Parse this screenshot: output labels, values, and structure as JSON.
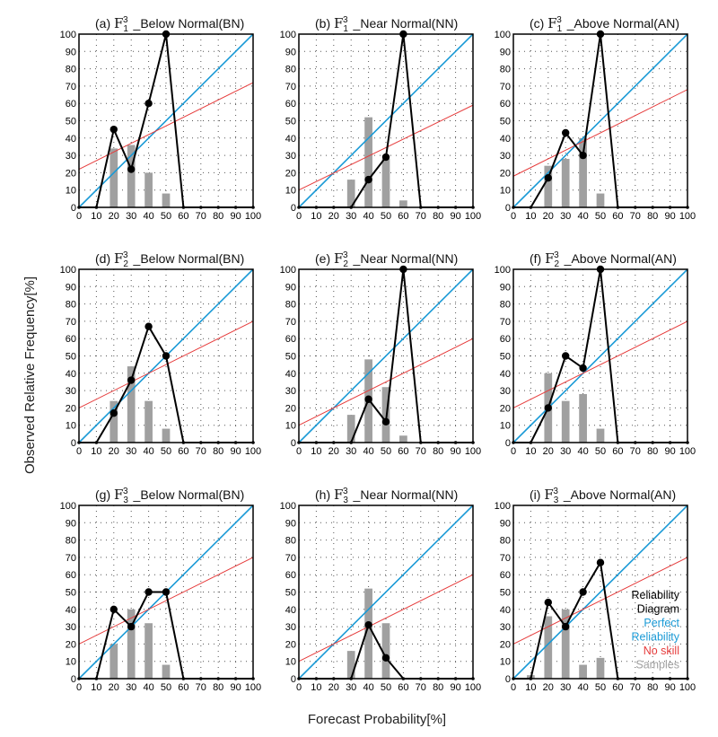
{
  "figure": {
    "ylabel": "Observed Relative Frequency[%]",
    "xlabel": "Forecast Probability[%]"
  },
  "colors": {
    "reliability": "#000000",
    "perfect": "#1a9ad6",
    "no_skill": "#e63c3c",
    "samples": "#a0a0a0"
  },
  "legend": {
    "items": [
      {
        "text": "Reliability",
        "color": "#000000"
      },
      {
        "text": "Diagram",
        "color": "#000000"
      },
      {
        "text": "Perfect",
        "color": "#1a9ad6"
      },
      {
        "text": "Reliability",
        "color": "#1a9ad6"
      },
      {
        "text": "No skill",
        "color": "#e63c3c"
      },
      {
        "text": "Samples",
        "color": "#a0a0a0"
      }
    ]
  },
  "chart_data": [
    {
      "type": "line",
      "panel": "(a)",
      "subscript": "1",
      "superscript": "3",
      "category": "_Below Normal(BN)",
      "xlim": [
        0,
        100
      ],
      "ylim": [
        0,
        100
      ],
      "ticks": [
        "0",
        "10",
        "20",
        "30",
        "40",
        "50",
        "60",
        "70",
        "80",
        "90",
        "100"
      ],
      "reliability": {
        "x": [
          0,
          10,
          20,
          30,
          40,
          50,
          60,
          70,
          80,
          90,
          100
        ],
        "y": [
          0,
          0,
          45,
          22,
          60,
          100,
          0,
          0,
          0,
          0,
          0
        ],
        "markers": [
          20,
          30,
          40,
          50
        ]
      },
      "no_skill": [
        22,
        72
      ],
      "samples": {
        "x": [
          20,
          30,
          40,
          50
        ],
        "values": [
          34,
          36,
          20,
          8
        ]
      }
    },
    {
      "type": "line",
      "panel": "(b)",
      "subscript": "1",
      "superscript": "3",
      "category": "_Near Normal(NN)",
      "xlim": [
        0,
        100
      ],
      "ylim": [
        0,
        100
      ],
      "ticks": [
        "0",
        "10",
        "20",
        "30",
        "40",
        "50",
        "60",
        "70",
        "80",
        "90",
        "100"
      ],
      "reliability": {
        "x": [
          0,
          10,
          20,
          30,
          40,
          50,
          60,
          70,
          80,
          90,
          100
        ],
        "y": [
          0,
          0,
          0,
          0,
          16,
          29,
          100,
          0,
          0,
          0,
          0
        ],
        "markers": [
          40,
          50,
          60
        ]
      },
      "no_skill": [
        10,
        59
      ],
      "samples": {
        "x": [
          30,
          40,
          50,
          60
        ],
        "values": [
          16,
          52,
          28,
          4
        ]
      }
    },
    {
      "type": "line",
      "panel": "(c)",
      "subscript": "1",
      "superscript": "3",
      "category": "_Above Normal(AN)",
      "xlim": [
        0,
        100
      ],
      "ylim": [
        0,
        100
      ],
      "ticks": [
        "0",
        "10",
        "20",
        "30",
        "40",
        "50",
        "60",
        "70",
        "80",
        "90",
        "100"
      ],
      "reliability": {
        "x": [
          0,
          10,
          20,
          30,
          40,
          50,
          60,
          70,
          80,
          90,
          100
        ],
        "y": [
          0,
          0,
          17,
          43,
          30,
          100,
          0,
          0,
          0,
          0,
          0
        ],
        "markers": [
          20,
          30,
          40,
          50
        ]
      },
      "no_skill": [
        18,
        68
      ],
      "samples": {
        "x": [
          20,
          30,
          40,
          50
        ],
        "values": [
          24,
          28,
          40,
          8
        ]
      }
    },
    {
      "type": "line",
      "panel": "(d)",
      "subscript": "2",
      "superscript": "3",
      "category": "_Below Normal(BN)",
      "xlim": [
        0,
        100
      ],
      "ylim": [
        0,
        100
      ],
      "ticks": [
        "0",
        "10",
        "20",
        "30",
        "40",
        "50",
        "60",
        "70",
        "80",
        "90",
        "100"
      ],
      "reliability": {
        "x": [
          0,
          10,
          20,
          30,
          40,
          50,
          60,
          70,
          80,
          90,
          100
        ],
        "y": [
          0,
          0,
          17,
          36,
          67,
          50,
          0,
          0,
          0,
          0,
          0
        ],
        "markers": [
          20,
          30,
          40,
          50
        ]
      },
      "no_skill": [
        20,
        70
      ],
      "samples": {
        "x": [
          20,
          30,
          40,
          50
        ],
        "values": [
          24,
          44,
          24,
          8
        ]
      }
    },
    {
      "type": "line",
      "panel": "(e)",
      "subscript": "2",
      "superscript": "3",
      "category": "_Near Normal(NN)",
      "xlim": [
        0,
        100
      ],
      "ylim": [
        0,
        100
      ],
      "ticks": [
        "0",
        "10",
        "20",
        "30",
        "40",
        "50",
        "60",
        "70",
        "80",
        "90",
        "100"
      ],
      "reliability": {
        "x": [
          0,
          10,
          20,
          30,
          40,
          50,
          60,
          70,
          80,
          90,
          100
        ],
        "y": [
          0,
          0,
          0,
          0,
          25,
          12,
          100,
          0,
          0,
          0,
          0
        ],
        "markers": [
          40,
          50,
          60
        ]
      },
      "no_skill": [
        10,
        60
      ],
      "samples": {
        "x": [
          30,
          40,
          50,
          60
        ],
        "values": [
          16,
          48,
          32,
          4
        ]
      }
    },
    {
      "type": "line",
      "panel": "(f)",
      "subscript": "2",
      "superscript": "3",
      "category": "_Above Normal(AN)",
      "xlim": [
        0,
        100
      ],
      "ylim": [
        0,
        100
      ],
      "ticks": [
        "0",
        "10",
        "20",
        "30",
        "40",
        "50",
        "60",
        "70",
        "80",
        "90",
        "100"
      ],
      "reliability": {
        "x": [
          0,
          10,
          20,
          30,
          40,
          50,
          60,
          70,
          80,
          90,
          100
        ],
        "y": [
          0,
          0,
          20,
          50,
          43,
          100,
          0,
          0,
          0,
          0,
          0
        ],
        "markers": [
          20,
          30,
          40,
          50
        ]
      },
      "no_skill": [
        20,
        70
      ],
      "samples": {
        "x": [
          20,
          30,
          40,
          50
        ],
        "values": [
          40,
          24,
          28,
          8
        ]
      }
    },
    {
      "type": "line",
      "panel": "(g)",
      "subscript": "3",
      "superscript": "3",
      "category": "_Below Normal(BN)",
      "xlim": [
        0,
        100
      ],
      "ylim": [
        0,
        100
      ],
      "ticks": [
        "0",
        "10",
        "20",
        "30",
        "40",
        "50",
        "60",
        "70",
        "80",
        "90",
        "100"
      ],
      "reliability": {
        "x": [
          0,
          10,
          20,
          30,
          40,
          50,
          60,
          70,
          80,
          90,
          100
        ],
        "y": [
          0,
          0,
          40,
          30,
          50,
          50,
          0,
          0,
          0,
          0,
          0
        ],
        "markers": [
          20,
          30,
          40,
          50
        ]
      },
      "no_skill": [
        20,
        70
      ],
      "samples": {
        "x": [
          20,
          30,
          40,
          50
        ],
        "values": [
          20,
          40,
          32,
          8
        ]
      }
    },
    {
      "type": "line",
      "panel": "(h)",
      "subscript": "3",
      "superscript": "3",
      "category": "_Near Normal(NN)",
      "xlim": [
        0,
        100
      ],
      "ylim": [
        0,
        100
      ],
      "ticks": [
        "0",
        "10",
        "20",
        "30",
        "40",
        "50",
        "60",
        "70",
        "80",
        "90",
        "100"
      ],
      "reliability": {
        "x": [
          0,
          10,
          20,
          30,
          40,
          50,
          60,
          70,
          80,
          90,
          100
        ],
        "y": [
          0,
          0,
          0,
          0,
          31,
          12,
          0,
          0,
          0,
          0,
          0
        ],
        "markers": [
          40,
          50
        ]
      },
      "no_skill": [
        10,
        60
      ],
      "samples": {
        "x": [
          30,
          40,
          50
        ],
        "values": [
          16,
          52,
          32
        ]
      }
    },
    {
      "type": "line",
      "panel": "(i)",
      "subscript": "3",
      "superscript": "3",
      "category": "_Above Normal(AN)",
      "xlim": [
        0,
        100
      ],
      "ylim": [
        0,
        100
      ],
      "ticks": [
        "0",
        "10",
        "20",
        "30",
        "40",
        "50",
        "60",
        "70",
        "80",
        "90",
        "100"
      ],
      "reliability": {
        "x": [
          0,
          10,
          20,
          30,
          40,
          50,
          60,
          70,
          80,
          90,
          100
        ],
        "y": [
          0,
          0,
          44,
          30,
          50,
          67,
          0,
          0,
          0,
          0,
          0
        ],
        "markers": [
          20,
          30,
          40,
          50
        ]
      },
      "no_skill": [
        20,
        70
      ],
      "samples": {
        "x": [
          10,
          20,
          30,
          40,
          50
        ],
        "values": [
          2,
          36,
          40,
          8,
          12
        ]
      }
    }
  ]
}
